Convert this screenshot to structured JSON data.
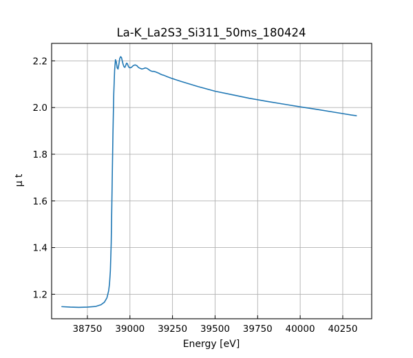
{
  "chart_data": {
    "type": "line",
    "title": "La-K_La2S3_Si311_50ms_180424",
    "xlabel": "Energy [eV]",
    "ylabel": "μ t",
    "xlim": [
      38540,
      40420
    ],
    "ylim": [
      1.095,
      2.275
    ],
    "xticks": [
      38750,
      39000,
      39250,
      39500,
      39750,
      40000,
      40250
    ],
    "xtick_labels": [
      "38750",
      "39000",
      "39250",
      "39500",
      "39750",
      "40000",
      "40250"
    ],
    "yticks": [
      1.2,
      1.4,
      1.6,
      1.8,
      2.0,
      2.2
    ],
    "ytick_labels": [
      "1.2",
      "1.4",
      "1.6",
      "1.8",
      "2.0",
      "2.2"
    ],
    "grid": true,
    "series": [
      {
        "color": "#1f77b4",
        "x": [
          38600,
          38650,
          38700,
          38750,
          38800,
          38830,
          38850,
          38865,
          38875,
          38880,
          38885,
          38890,
          38895,
          38900,
          38905,
          38910,
          38915,
          38920,
          38925,
          38930,
          38935,
          38940,
          38945,
          38950,
          38955,
          38960,
          38965,
          38970,
          38975,
          38980,
          38985,
          38990,
          38995,
          39000,
          39010,
          39020,
          39030,
          39040,
          39050,
          39060,
          39070,
          39080,
          39090,
          39100,
          39110,
          39120,
          39130,
          39140,
          39150,
          39160,
          39170,
          39180,
          39190,
          39200,
          39220,
          39250,
          39300,
          39400,
          39500,
          39600,
          39700,
          39800,
          39900,
          40000,
          40100,
          40200,
          40300,
          40330
        ],
        "y": [
          1.147,
          1.145,
          1.144,
          1.145,
          1.148,
          1.155,
          1.166,
          1.185,
          1.215,
          1.245,
          1.3,
          1.42,
          1.65,
          1.88,
          2.06,
          2.16,
          2.205,
          2.195,
          2.17,
          2.165,
          2.185,
          2.21,
          2.218,
          2.215,
          2.2,
          2.185,
          2.175,
          2.172,
          2.18,
          2.19,
          2.188,
          2.178,
          2.172,
          2.17,
          2.173,
          2.18,
          2.183,
          2.18,
          2.172,
          2.168,
          2.165,
          2.167,
          2.17,
          2.168,
          2.163,
          2.158,
          2.155,
          2.155,
          2.153,
          2.15,
          2.147,
          2.143,
          2.14,
          2.138,
          2.132,
          2.124,
          2.112,
          2.09,
          2.07,
          2.055,
          2.04,
          2.027,
          2.015,
          2.003,
          1.992,
          1.98,
          1.968,
          1.965
        ]
      }
    ]
  }
}
